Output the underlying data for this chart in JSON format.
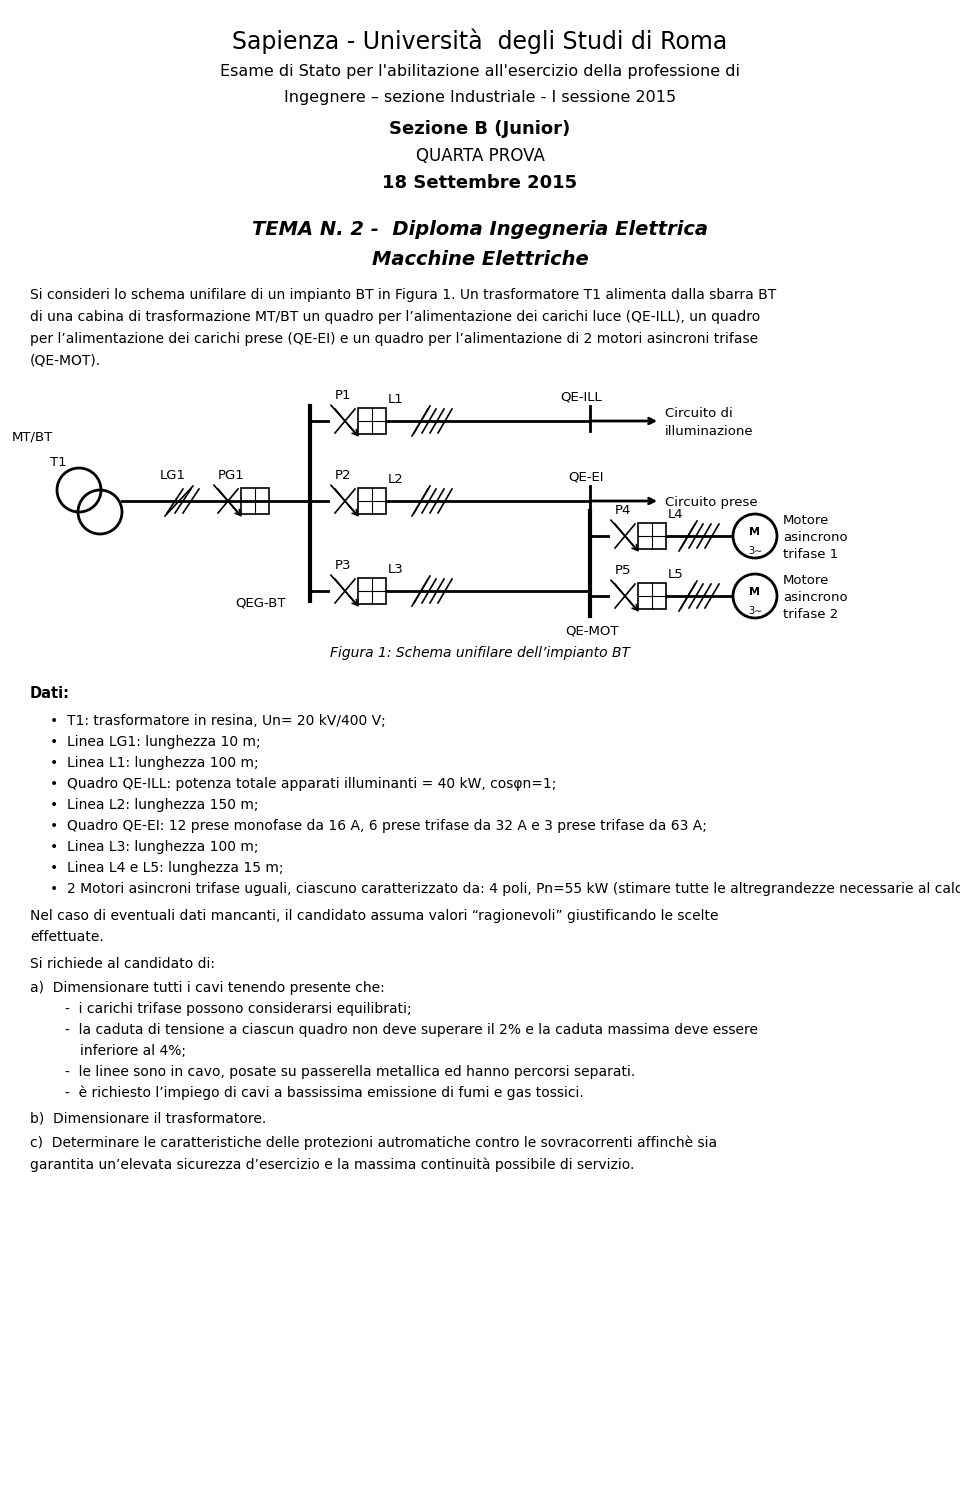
{
  "title_line1": "Sapienza - Università  degli Studi di Roma",
  "title_line2": "Esame di Stato per l'abilitazione all'esercizio della professione di",
  "title_line3": "Ingegnere – sezione Industriale - I sessione 2015",
  "title_line4": "Sezione B (Junior)",
  "title_line5": "QUARTA PROVA",
  "title_line6": "18 Settembre 2015",
  "tema": "TEMA N. 2 -  Diploma Ingegneria Elettrica",
  "tema2": "Macchine Elettriche",
  "intro_lines": [
    "Si consideri lo schema unifilare di un impianto BT in Figura 1. Un trasformatore T1 alimenta dalla sbarra BT",
    "di una cabina di trasformazione MT/BT un quadro per l’alimentazione dei carichi luce (QE-ILL), un quadro",
    "per l’alimentazione dei carichi prese (QE-EI) e un quadro per l’alimentazione di 2 motori asincroni trifase",
    "(QE-MOT)."
  ],
  "figura_caption": "Figura 1: Schema unifilare dell’impianto BT",
  "dati_title": "Dati:",
  "dati_items": [
    [
      "T1: trasformatore in resina, U",
      "n",
      "= 20 kV/400 V;"
    ],
    [
      "Linea LG",
      "1",
      ": lunghezza 10 m;"
    ],
    [
      "Linea L",
      "1",
      ": lunghezza 100 m;"
    ],
    [
      "Quadro QE-ILL: potenza totale apparati illuminanti = 40 kW, cosφ",
      "n",
      "=1;"
    ],
    [
      "Linea L",
      "2",
      ": lunghezza 150 m;"
    ],
    [
      "Quadro QE-EI: 12 prese monofase da 16 A, 6 prese trifase da 32 A e 3 prese trifase da 63 A;"
    ],
    [
      "Linea L",
      "3",
      ": lunghezza 100 m;"
    ],
    [
      "Linea L",
      "4",
      " e L",
      "5",
      ": lunghezza 15 m;"
    ],
    [
      "2 Motori asincroni trifase uguali, ciascuno caratterizzato da: 4 poli, P",
      "n",
      "=55 kW (stimare tutte le altre",
      "grandezze necessarie al calcolo)"
    ]
  ],
  "note_lines": [
    "Nel caso di eventuali dati mancanti, il candidato assuma valori “ragionevoli” giustificando le scelte",
    "effettuate."
  ],
  "si_richiede": "Si richiede al candidato di:",
  "items_a_title": "a)  Dimensionare tutti i cavi tenendo presente che:",
  "items_a": [
    [
      "i carichi trifase possono considerarsi equilibrati;"
    ],
    [
      "la caduta di tensione a ciascun quadro non deve superare il 2% e la caduta massima deve essere",
      "inferiore al 4%;"
    ],
    [
      "le linee sono in cavo, posate su passerella metallica ed hanno percorsi separati."
    ],
    [
      "è richiesto l’impiego di cavi a bassissima emissione di fumi e gas tossici."
    ]
  ],
  "item_b": "b)  Dimensionare il trasformatore.",
  "item_c_lines": [
    "c)  Determinare le caratteristiche delle protezioni autromatiche contro le sovracorrenti affinchè sia",
    "garantita un’elevata sicurezza d’esercizio e la massima continuità possibile di servizio."
  ],
  "bg_color": "#ffffff",
  "text_color": "#000000"
}
